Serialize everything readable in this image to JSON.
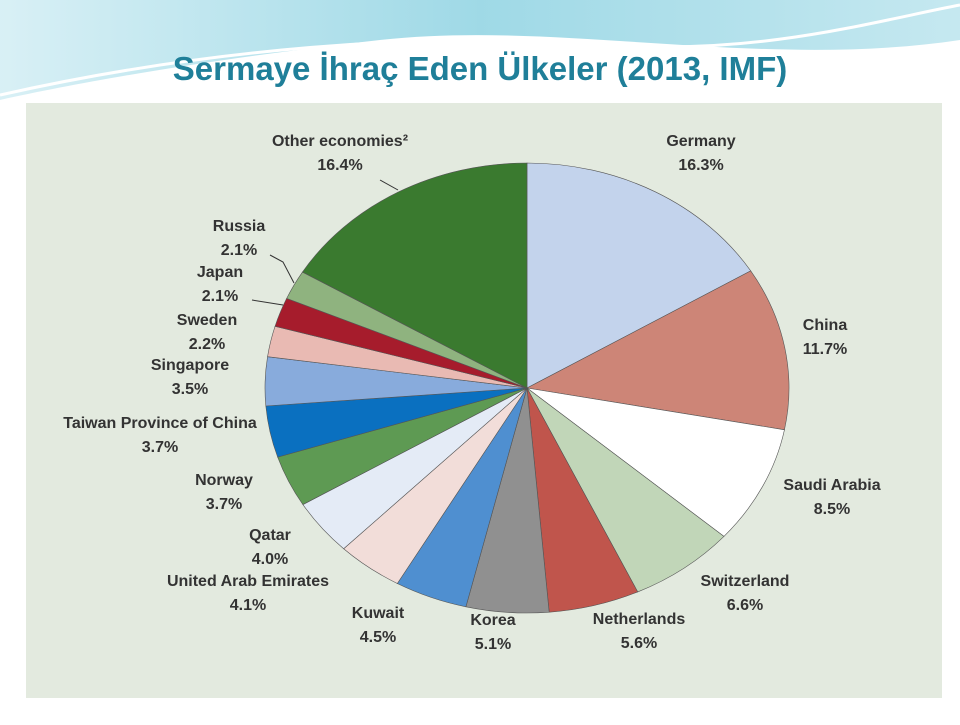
{
  "chart_data": {
    "type": "pie",
    "title": "Sermaye İhraç Eden Ülkeler (2013, IMF)",
    "categories": [
      "Germany",
      "China",
      "Saudi Arabia",
      "Switzerland",
      "Netherlands",
      "Korea",
      "Kuwait",
      "United Arab Emirates",
      "Qatar",
      "Norway",
      "Taiwan Province of China",
      "Singapore",
      "Sweden",
      "Japan",
      "Russia",
      "Other economies²"
    ],
    "values": [
      16.3,
      11.7,
      8.5,
      6.6,
      5.6,
      5.1,
      4.5,
      4.1,
      4.0,
      3.7,
      3.7,
      3.5,
      2.2,
      2.1,
      2.1,
      16.4
    ],
    "value_labels": [
      "16.3%",
      "11.7%",
      "8.5%",
      "6.6%",
      "5.6%",
      "5.1%",
      "4.5%",
      "4.1%",
      "4.0%",
      "3.7%",
      "3.7%",
      "3.5%",
      "2.2%",
      "2.1%",
      "2.1%",
      "16.4%"
    ],
    "colors": [
      "#c3d3ec",
      "#cd8577",
      "#ffffff",
      "#c1d6b8",
      "#c0554c",
      "#909090",
      "#4f8fd0",
      "#f2ddd9",
      "#e4ebf6",
      "#5e9a53",
      "#0a70c0",
      "#88abdc",
      "#e9bab3",
      "#a61c2c",
      "#8fb37f",
      "#3a7a2f"
    ]
  }
}
